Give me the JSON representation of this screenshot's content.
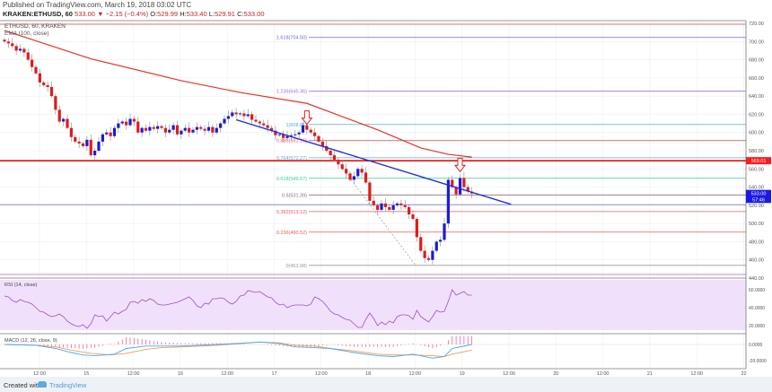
{
  "header": {
    "published": "Published on TradingView.com, March 19, 2018 03:02 UTC",
    "symbol": "KRAKEN:ETHUSD, 60",
    "last": "533.00",
    "change": "−2.15 (−0.4%)",
    "o_label": "O:",
    "o": "529.99",
    "h_label": "H:",
    "h": "533.40",
    "l_label": "L:",
    "l": "529.91",
    "c_label": "C:",
    "c": "533.00"
  },
  "legend": {
    "main": "ETHUSD, 60, KRAKEN",
    "ema": "EMA (100, close)",
    "rsi": "RSI (14, close)",
    "macd": "MACD (12, 26, close, 9)"
  },
  "colors": {
    "up": "#1b1bd6",
    "down": "#e01b1b",
    "ema": "#e8312a",
    "trend": "#1f2fe0",
    "rsi": "#9c4fc9",
    "rsi_band": "#f1e0fb",
    "macd": "#4aa8f0",
    "signal": "#f59a52",
    "hist_pos": "#f06292",
    "hist_neg": "#f06292"
  },
  "price_axis": {
    "ticks": [
      "720.00",
      "700.00",
      "680.00",
      "660.00",
      "640.00",
      "620.00",
      "600.00",
      "580.00",
      "560.00",
      "540.00",
      "520.00",
      "500.00",
      "480.00",
      "460.00",
      "440.00"
    ],
    "labels": [
      {
        "text": "569.01",
        "price": 569.01,
        "color": "#ff1a1a"
      },
      {
        "text": "533.00",
        "price": 533,
        "color": "#1a1ae6"
      },
      {
        "text": "57:46",
        "price": 526.5,
        "color": "#1a1ae6"
      }
    ]
  },
  "time_axis": [
    "12:00",
    "15",
    "12:00",
    "16",
    "12:00",
    "17",
    "12:00",
    "18",
    "12:00",
    "19",
    "12:00",
    "20",
    "12:00",
    "21",
    "12:00",
    "22"
  ],
  "rsi_axis": [
    "60.0000",
    "40.0000",
    "20.0000"
  ],
  "macd_axis": [
    "0.0000",
    "-20.0000"
  ],
  "fib": [
    {
      "text": "1.618(704.50)",
      "price": 704.5,
      "color": "#6b6be0"
    },
    {
      "text": "1.236(645.36)",
      "price": 645.36,
      "color": "#a86cdc"
    },
    {
      "text": "1(608.81)",
      "price": 608.81,
      "color": "#4fb0d8"
    },
    {
      "text": "0.886(591.16)",
      "price": 591.16,
      "color": "#ee5a5a"
    },
    {
      "text": "0.764(572.27)",
      "price": 572.27,
      "color": "#4fb0d8"
    },
    {
      "text": "0.618(549.67)",
      "price": 549.67,
      "color": "#2fcf95"
    },
    {
      "text": "0.5(531.39)",
      "price": 531.39,
      "color": "#8a7070"
    },
    {
      "text": "0.382(513.12)",
      "price": 513.12,
      "color": "#ee5a5a"
    },
    {
      "text": "0.236(490.52)",
      "price": 490.52,
      "color": "#ee5a5a"
    },
    {
      "text": "0(453.98)",
      "price": 453.98,
      "color": "#999999"
    }
  ],
  "hlines": [
    {
      "price": 719,
      "color": "#e84545"
    },
    {
      "price": 569.01,
      "color": "#e01010"
    },
    {
      "price": 520.7,
      "color": "#6a6ae6"
    },
    {
      "price": 444,
      "color": "#b07ae0"
    }
  ],
  "trendline": {
    "start": {
      "bar": 59,
      "price": 614
    },
    "end": {
      "bar": 129,
      "price": 521
    }
  },
  "arrows": [
    {
      "bar": 77,
      "price": 608
    },
    {
      "bar": 116,
      "price": 556
    }
  ],
  "chart_data": {
    "type": "candlestick",
    "closes": [
      700,
      698,
      695,
      690,
      692,
      688,
      680,
      672,
      665,
      655,
      652,
      650,
      640,
      625,
      612,
      615,
      605,
      595,
      590,
      588,
      585,
      592,
      575,
      580,
      590,
      598,
      600,
      596,
      605,
      610,
      612,
      608,
      615,
      612,
      600,
      605,
      602,
      606,
      604,
      607,
      605,
      600,
      603,
      608,
      598,
      602,
      605,
      600,
      603,
      606,
      604,
      602,
      606,
      600,
      605,
      610,
      615,
      618,
      622,
      620,
      621,
      618,
      620,
      614,
      612,
      610,
      608,
      605,
      602,
      597,
      598,
      594,
      596,
      597,
      598,
      600,
      608,
      603,
      600,
      596,
      590,
      585,
      580,
      575,
      570,
      565,
      560,
      555,
      548,
      552,
      560,
      556,
      545,
      525,
      520,
      515,
      522,
      518,
      515,
      520,
      522,
      520,
      518,
      510,
      505,
      485,
      470,
      462,
      460,
      470,
      480,
      482,
      500,
      548,
      540,
      532,
      550,
      540,
      535,
      533
    ],
    "ema_points": [
      [
        0,
        712
      ],
      [
        22,
        681
      ],
      [
        45,
        657
      ],
      [
        60,
        644
      ],
      [
        77,
        632
      ],
      [
        95,
        603
      ],
      [
        106,
        583
      ],
      [
        113,
        576
      ],
      [
        119,
        573
      ]
    ],
    "rsi": [
      53,
      52,
      48,
      46,
      49,
      47,
      46,
      44,
      40,
      36,
      35,
      32,
      30,
      31,
      33,
      30,
      25,
      22,
      20,
      19,
      21,
      17,
      22,
      32,
      30,
      31,
      25,
      30,
      35,
      33,
      36,
      38,
      46,
      47,
      45,
      49,
      47,
      50,
      48,
      44,
      43,
      43,
      44,
      45,
      46,
      48,
      50,
      52,
      48,
      42,
      40,
      45,
      44,
      50,
      50,
      51,
      50,
      46,
      44,
      47,
      53,
      54,
      59,
      58,
      57,
      58,
      55,
      52,
      51,
      46,
      43,
      44,
      40,
      42,
      43,
      43,
      43,
      42,
      44,
      52,
      50,
      47,
      42,
      36,
      33,
      32,
      29,
      27,
      26,
      22,
      18,
      18,
      27,
      34,
      28,
      20,
      24,
      21,
      25,
      23,
      30,
      32,
      32,
      31,
      27,
      37,
      30,
      27,
      24,
      30,
      37,
      35,
      36,
      47,
      60,
      54,
      56,
      58,
      54,
      54
    ],
    "macd_points": [
      [
        0,
        0
      ],
      [
        8,
        -1
      ],
      [
        13,
        -5
      ],
      [
        17,
        -10
      ],
      [
        20,
        -13
      ],
      [
        23,
        -14
      ],
      [
        28,
        -12
      ],
      [
        31,
        -5
      ],
      [
        36,
        -2
      ],
      [
        40,
        -2
      ],
      [
        45,
        -2
      ],
      [
        54,
        0
      ],
      [
        60,
        1.5
      ],
      [
        65,
        3
      ],
      [
        70,
        1
      ],
      [
        74,
        -3
      ],
      [
        79,
        -4
      ],
      [
        83,
        -5
      ],
      [
        89,
        -10
      ],
      [
        95,
        -14
      ],
      [
        99,
        -15
      ],
      [
        104,
        -12
      ],
      [
        109,
        -17
      ],
      [
        112,
        -15
      ],
      [
        114,
        -5
      ],
      [
        119,
        0
      ]
    ],
    "signal_points": [
      [
        0,
        0
      ],
      [
        8,
        -1
      ],
      [
        13,
        -3
      ],
      [
        17,
        -7
      ],
      [
        22,
        -11
      ],
      [
        27,
        -13
      ],
      [
        31,
        -11
      ],
      [
        36,
        -6
      ],
      [
        40,
        -4
      ],
      [
        45,
        -3
      ],
      [
        54,
        -1
      ],
      [
        60,
        1
      ],
      [
        65,
        3
      ],
      [
        70,
        2
      ],
      [
        74,
        -1
      ],
      [
        79,
        -2
      ],
      [
        83,
        -5
      ],
      [
        89,
        -8
      ],
      [
        95,
        -12
      ],
      [
        99,
        -13
      ],
      [
        104,
        -13
      ],
      [
        109,
        -14
      ],
      [
        112,
        -15
      ],
      [
        114,
        -12
      ],
      [
        119,
        -7
      ]
    ],
    "price_range": [
      440,
      720
    ],
    "rsi_range": [
      0,
      80
    ],
    "macd_range": [
      -25,
      15
    ]
  },
  "footer": {
    "created": "Created with",
    "brand": "TradingView"
  }
}
